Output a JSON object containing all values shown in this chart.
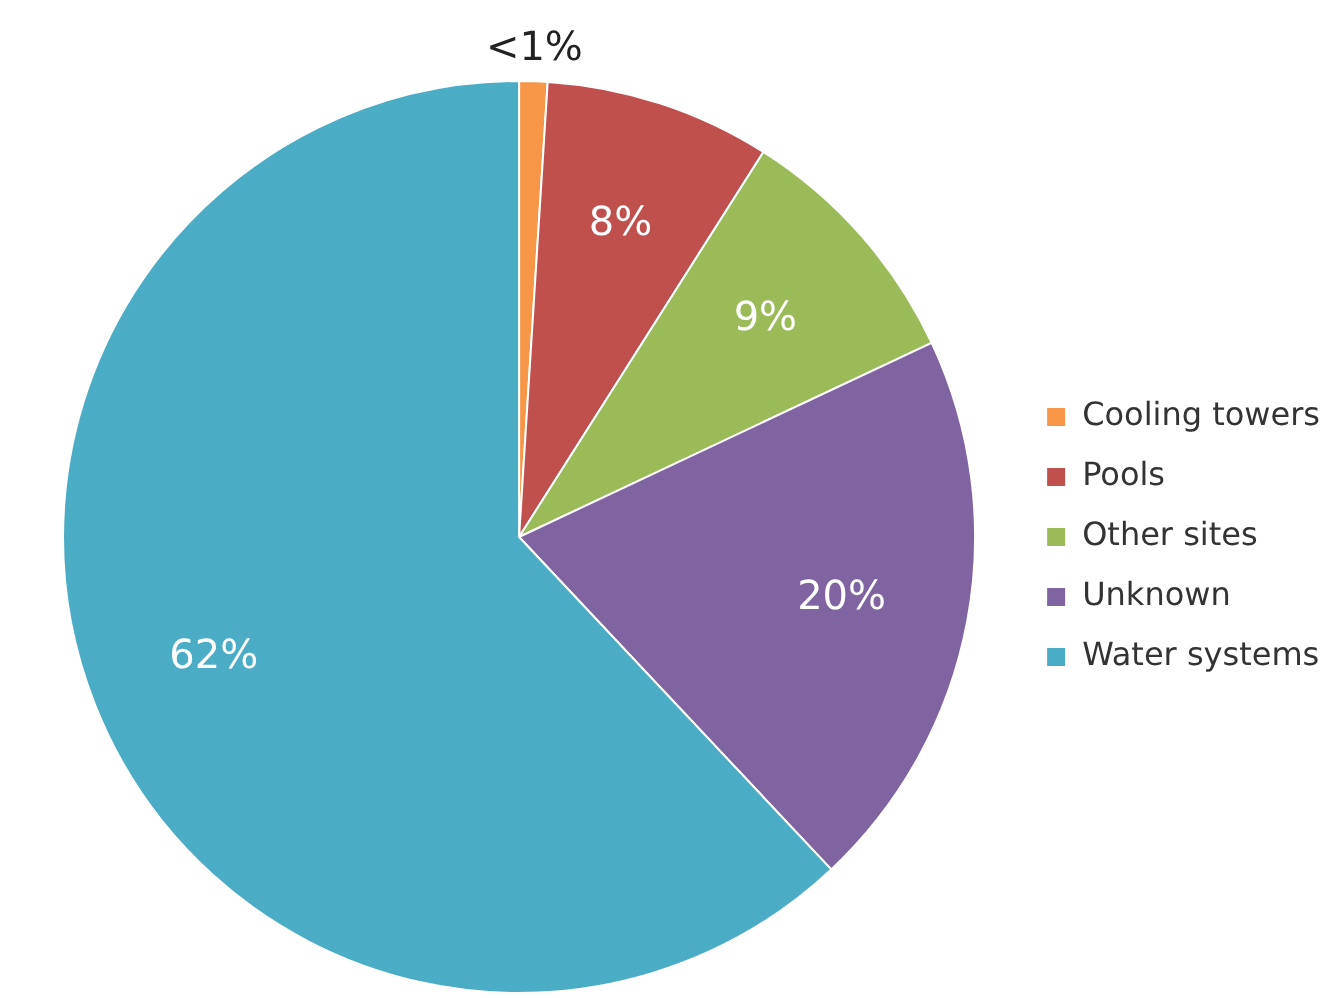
{
  "chart_data": {
    "type": "pie",
    "categories": [
      "Cooling towers",
      "Pools",
      "Other sites",
      "Unknown",
      "Water systems"
    ],
    "values": [
      1,
      8,
      9,
      20,
      62
    ],
    "value_labels": [
      "<1%",
      "8%",
      "9%",
      "20%",
      "62%"
    ],
    "colors": [
      "#f79646",
      "#c0504d",
      "#9bbb59",
      "#8064a2",
      "#4bacc6"
    ],
    "legend": "right"
  }
}
